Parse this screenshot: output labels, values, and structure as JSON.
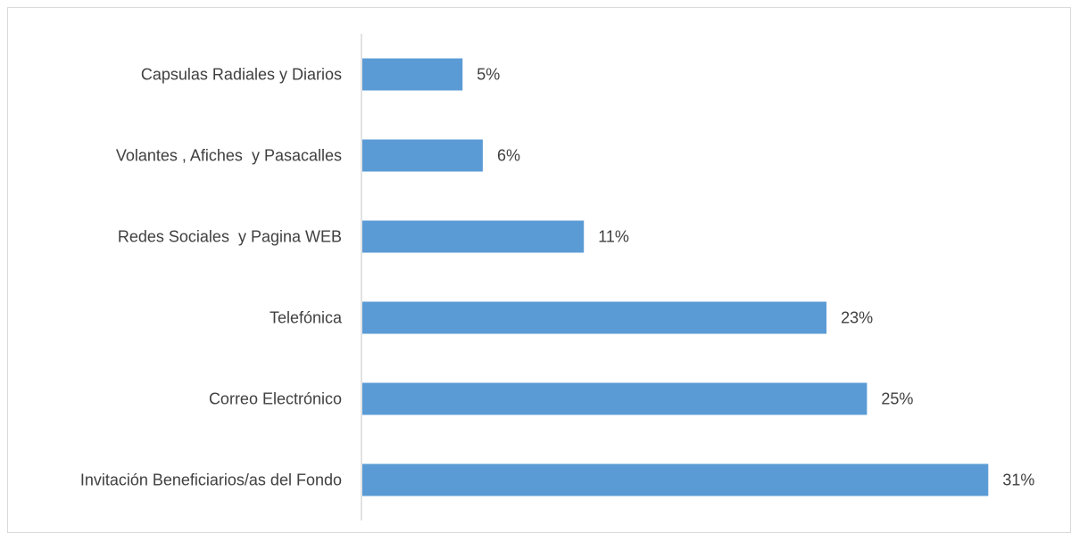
{
  "chart_data": {
    "type": "bar",
    "orientation": "horizontal",
    "title": "",
    "xlabel": "",
    "ylabel": "",
    "categories": [
      "Capsulas Radiales y Diarios",
      "Volantes , Afiches  y Pasacalles",
      "Redes Sociales  y Pagina WEB",
      "Telefónica",
      "Correo Electrónico",
      "Invitación Beneficiarios/as del Fondo"
    ],
    "values": [
      5,
      6,
      11,
      23,
      25,
      31
    ],
    "value_labels": [
      "5%",
      "6%",
      "11%",
      "23%",
      "25%",
      "31%"
    ],
    "unit": "%",
    "xlim": [
      0,
      32
    ],
    "grid": false,
    "legend": "none",
    "bar_color": "#5b9bd5",
    "axis_color": "#d9d9d9",
    "text_color": "#404040"
  }
}
